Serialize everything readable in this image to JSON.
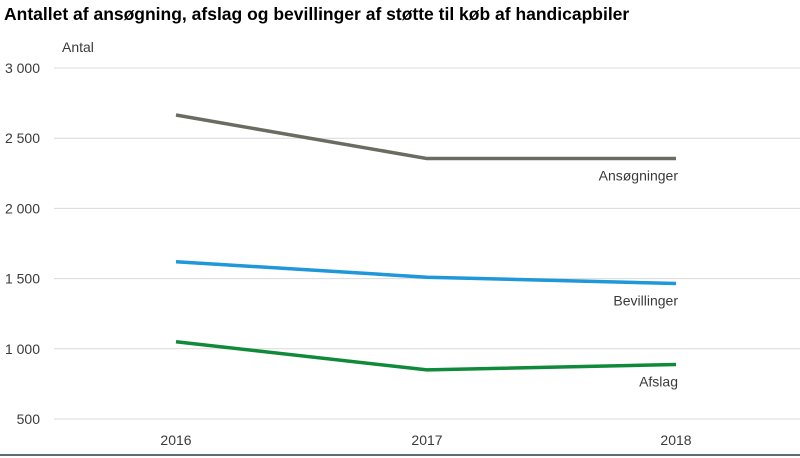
{
  "chart_data": {
    "type": "line",
    "title": "Antallet af ansøgning, afslag og bevillinger af støtte til køb af handicapbiler",
    "ylabel": "Antal",
    "xlabel": "",
    "categories": [
      "2016",
      "2017",
      "2018"
    ],
    "ylim": [
      500,
      3000
    ],
    "yticks": [
      500,
      1000,
      1500,
      2000,
      2500,
      3000
    ],
    "ytick_labels": [
      "500",
      "1 000",
      "1 500",
      "2 000",
      "2 500",
      "3 000"
    ],
    "grid": "horizontal",
    "series": [
      {
        "name": "Ansøgninger",
        "values": [
          2665,
          2355,
          2355
        ],
        "color": "#6b6b62"
      },
      {
        "name": "Bevillinger",
        "values": [
          1620,
          1510,
          1465
        ],
        "color": "#1f97d8"
      },
      {
        "name": "Afslag",
        "values": [
          1050,
          850,
          888
        ],
        "color": "#0f8a3a"
      }
    ]
  }
}
